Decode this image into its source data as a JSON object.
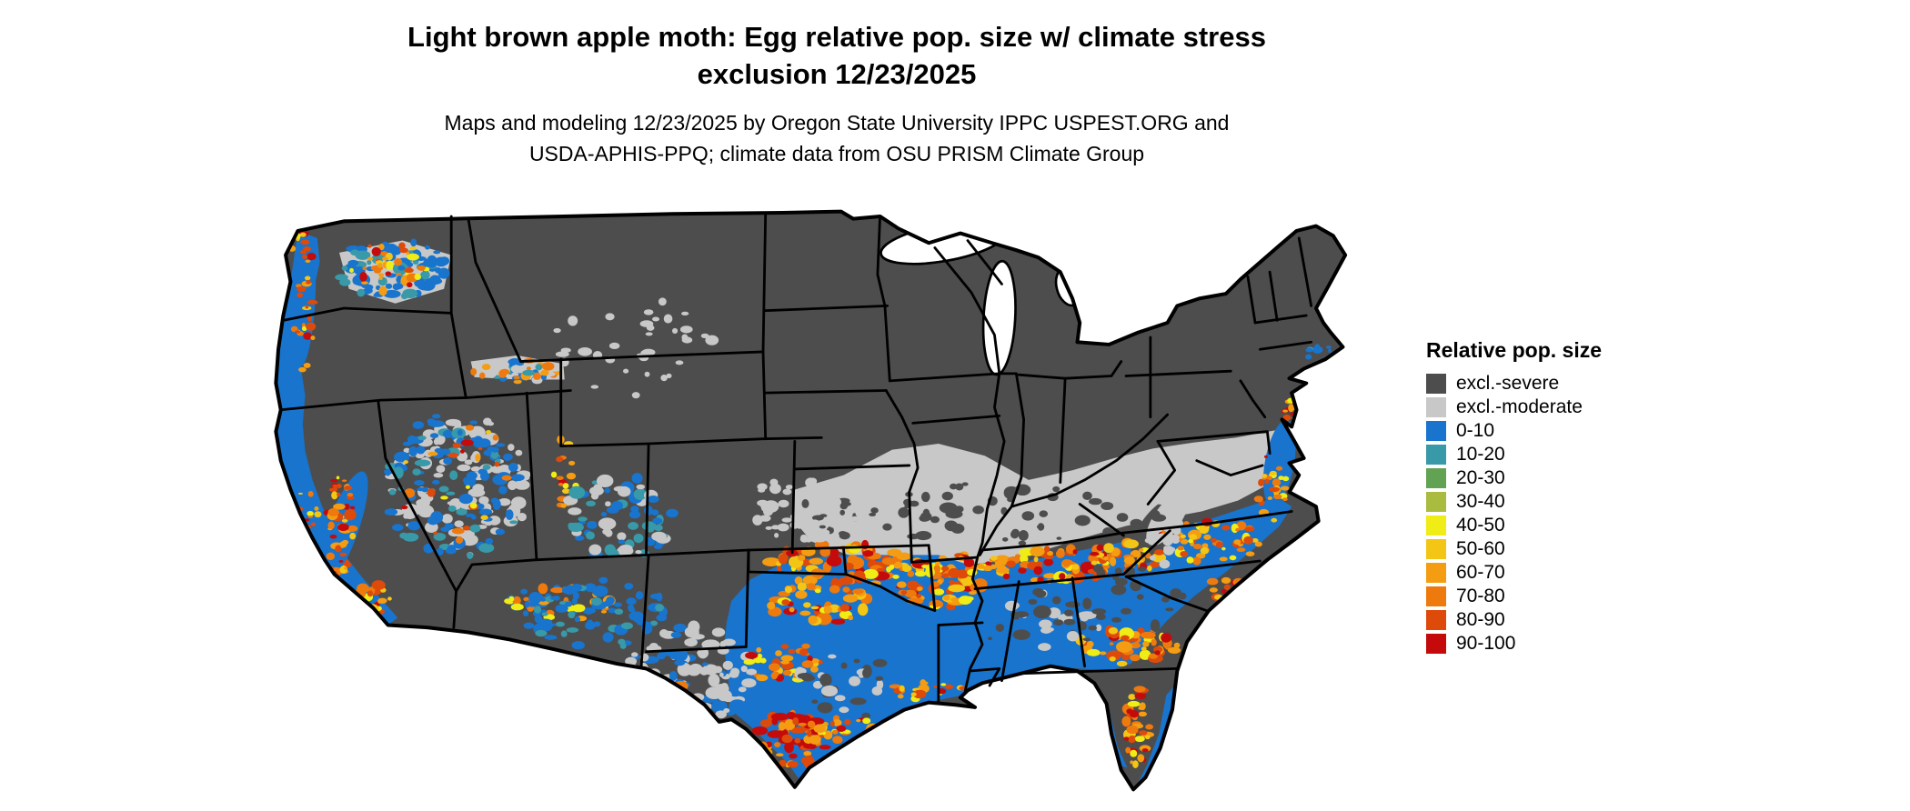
{
  "header": {
    "title_line1": "Light brown apple moth: Egg relative pop. size w/ climate stress",
    "title_line2": "exclusion 12/23/2025",
    "subtitle_line1": "Maps and modeling 12/23/2025 by Oregon State University IPPC USPEST.ORG and",
    "subtitle_line2": "USDA-APHIS-PPQ; climate data from OSU PRISM Climate Group"
  },
  "legend": {
    "title": "Relative pop. size",
    "items": [
      {
        "label": "excl.-severe",
        "color": "#4D4D4D"
      },
      {
        "label": "excl.-moderate",
        "color": "#C8C8C8"
      },
      {
        "label": "0-10",
        "color": "#1874CD"
      },
      {
        "label": "10-20",
        "color": "#3899A8"
      },
      {
        "label": "20-30",
        "color": "#62A353"
      },
      {
        "label": "30-40",
        "color": "#A9BC3F"
      },
      {
        "label": "40-50",
        "color": "#F0EC15"
      },
      {
        "label": "50-60",
        "color": "#F3C515"
      },
      {
        "label": "60-70",
        "color": "#F49D12"
      },
      {
        "label": "70-80",
        "color": "#EE7A0E"
      },
      {
        "label": "80-90",
        "color": "#DE4A0A"
      },
      {
        "label": "90-100",
        "color": "#C40A0A"
      }
    ]
  },
  "map": {
    "background": "#FFFFFF",
    "border_color": "#000000",
    "lake_color": "#FFFFFF"
  }
}
